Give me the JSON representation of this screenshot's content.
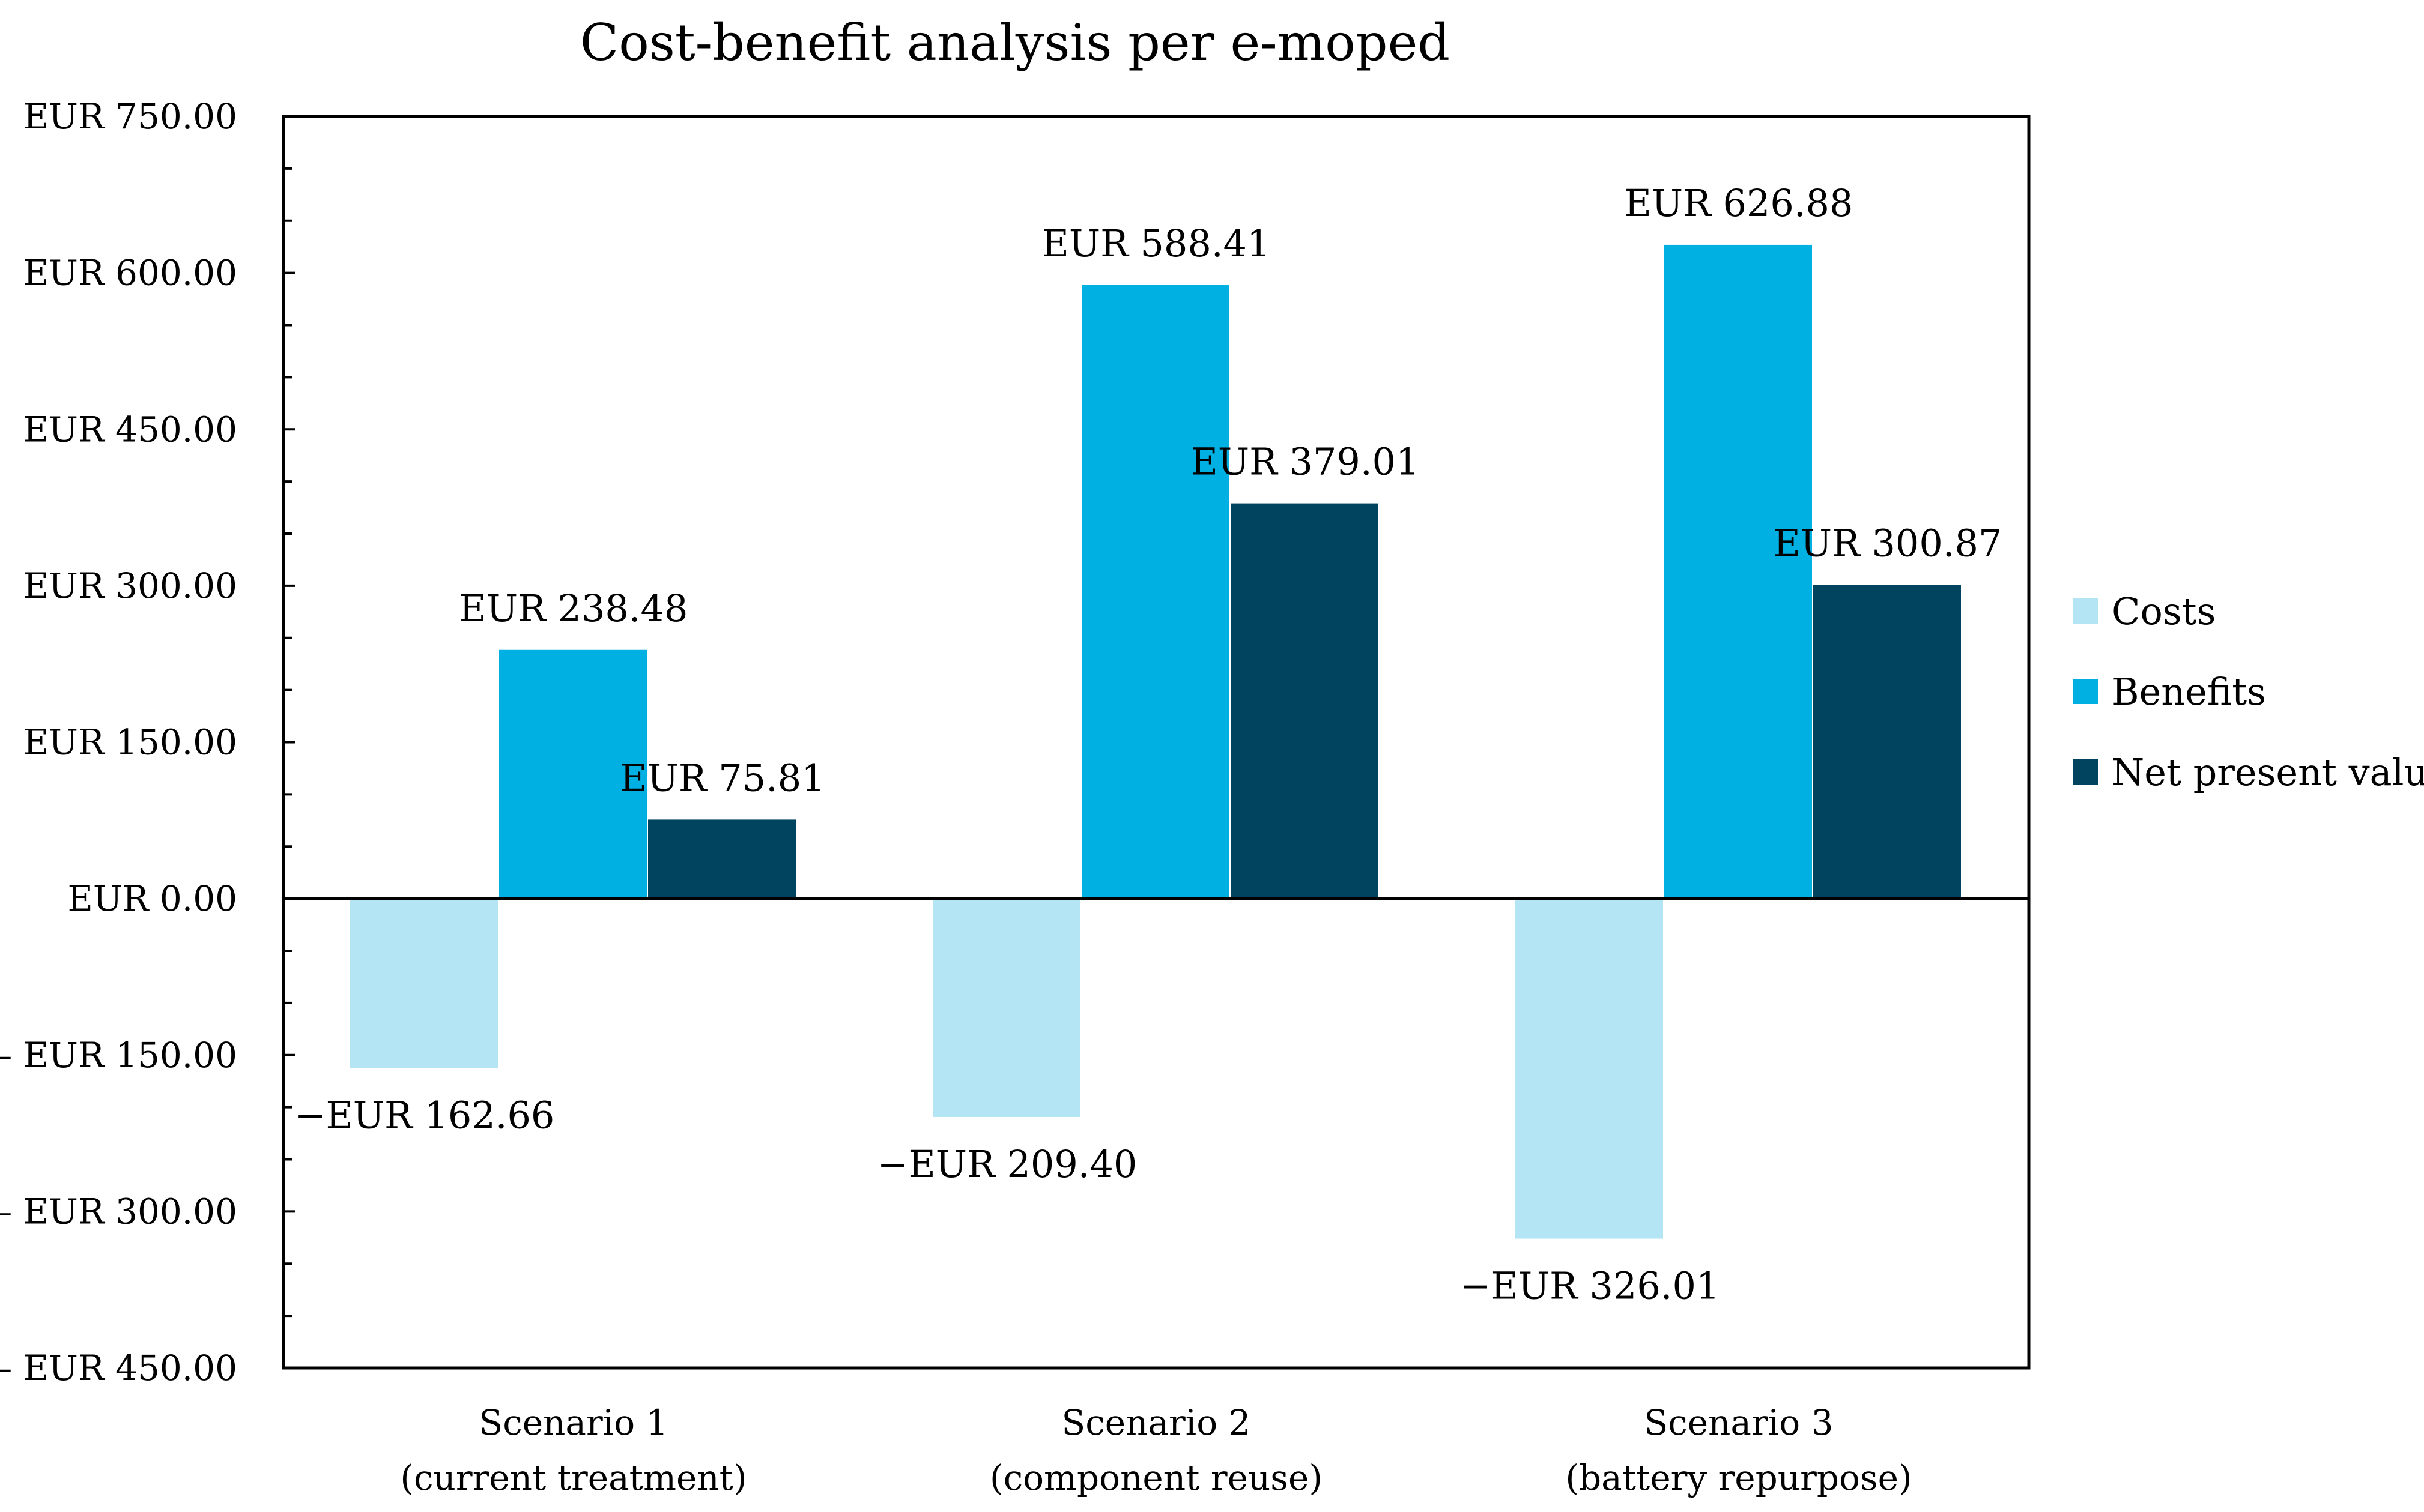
{
  "chart_data": {
    "type": "bar",
    "title": "Cost-benefit analysis per e-moped",
    "xlabel": "",
    "ylabel": "",
    "categories": [
      [
        "Scenario 1",
        "(current treatment)"
      ],
      [
        "Scenario 2",
        "(component reuse)"
      ],
      [
        "Scenario 3",
        "(battery repurpose)"
      ]
    ],
    "series": [
      {
        "name": "Costs",
        "color": "#b3e5f5",
        "values": [
          -162.66,
          -209.4,
          -326.01
        ],
        "labels": [
          "−EUR 162.66",
          "−EUR 209.40",
          "−EUR 326.01"
        ]
      },
      {
        "name": "Benefits",
        "color": "#00b0e3",
        "values": [
          238.48,
          588.41,
          626.88
        ],
        "labels": [
          "EUR 238.48",
          "EUR 588.41",
          "EUR 626.88"
        ]
      },
      {
        "name": "Net present value",
        "color": "#004460",
        "values": [
          75.81,
          379.01,
          300.87
        ],
        "labels": [
          "EUR 75.81",
          "EUR 379.01",
          "EUR 300.87"
        ]
      }
    ],
    "ylim": [
      -450,
      750
    ],
    "y_major_step": 150,
    "y_minor_step": 50,
    "ytick_labels": [
      "– EUR 450.00",
      "– EUR 300.00",
      "– EUR 150.00",
      "EUR 0.00",
      "EUR 150.00",
      "EUR 300.00",
      "EUR 450.00",
      "EUR 600.00",
      "EUR 750.00"
    ],
    "grid": false,
    "legend": "right"
  }
}
